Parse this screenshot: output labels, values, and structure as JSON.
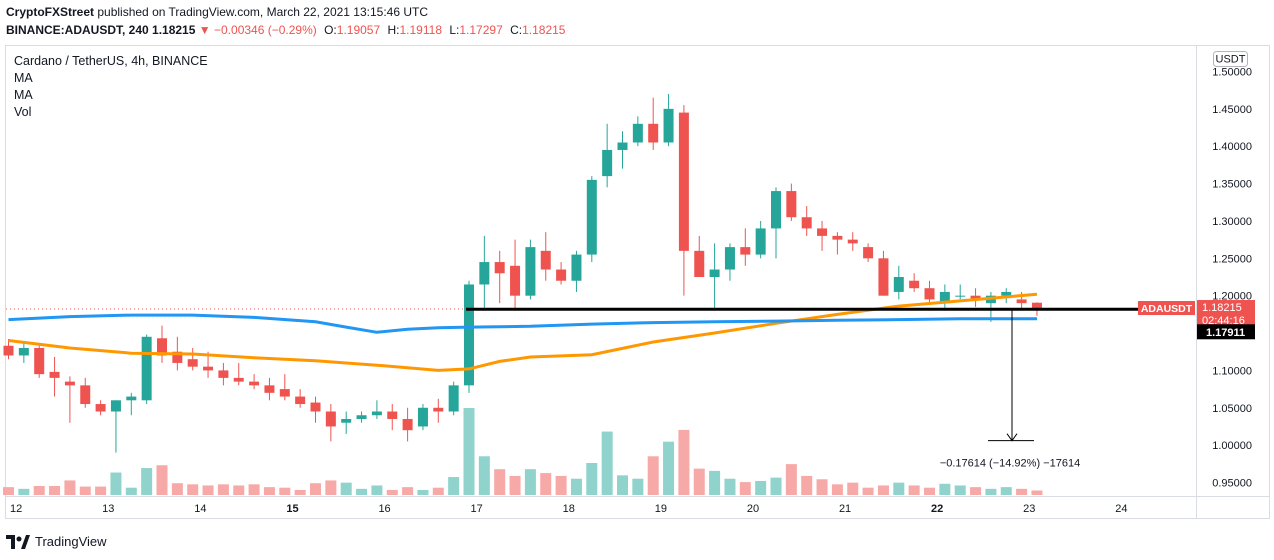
{
  "header": {
    "publisher": "CryptoFXStreet",
    "published_text": "published on TradingView.com, March 22, 2021 13:15:46 UTC",
    "symbol_line": "BINANCE:ADAUSDT, 240",
    "last": "1.18215",
    "change": "−0.00346 (−0.29%)",
    "o_label": "O:",
    "o": "1.19057",
    "h_label": "H:",
    "h": "1.19118",
    "l_label": "L:",
    "l": "1.17297",
    "c_label": "C:",
    "c": "1.18215"
  },
  "legend": {
    "title": "Cardano / TetherUS, 4h, BINANCE",
    "items": [
      "MA",
      "MA",
      "Vol"
    ]
  },
  "currency_badge": "USDT",
  "price_label": {
    "symbol": "ADAUSDT",
    "price": "1.18215",
    "countdown": "02:44:16"
  },
  "level_label": "1.17911",
  "measure_text": "−0.17614 (−14.92%) −17614",
  "brand": "TradingView",
  "colors": {
    "up": "#26a69a",
    "down": "#ef5350",
    "ma_fast": "#2196f3",
    "ma_slow": "#ff9800",
    "vol_up": "#8fd3cc",
    "vol_down": "#f6a9a6"
  },
  "chart_data": {
    "type": "candlestick",
    "title": "Cardano / TetherUS, 4h, BINANCE",
    "ylim": [
      0.93,
      1.52
    ],
    "y_ticks": [
      "1.50000",
      "1.45000",
      "1.40000",
      "1.35000",
      "1.30000",
      "1.25000",
      "1.20000",
      "1.15000",
      "1.10000",
      "1.05000",
      "1.00000",
      "0.95000"
    ],
    "y_tick_values": [
      1.5,
      1.45,
      1.4,
      1.35,
      1.3,
      1.25,
      1.2,
      1.15,
      1.1,
      1.05,
      1.0,
      0.95
    ],
    "x_ticks": [
      {
        "label": "12",
        "slot": 0.5,
        "bold": false
      },
      {
        "label": "13",
        "slot": 6.5,
        "bold": false
      },
      {
        "label": "14",
        "slot": 12.5,
        "bold": false
      },
      {
        "label": "15",
        "slot": 18.5,
        "bold": true
      },
      {
        "label": "16",
        "slot": 24.5,
        "bold": false
      },
      {
        "label": "17",
        "slot": 30.5,
        "bold": false
      },
      {
        "label": "18",
        "slot": 36.5,
        "bold": false
      },
      {
        "label": "19",
        "slot": 42.5,
        "bold": false
      },
      {
        "label": "20",
        "slot": 48.5,
        "bold": false
      },
      {
        "label": "21",
        "slot": 54.5,
        "bold": false
      },
      {
        "label": "22",
        "slot": 60.5,
        "bold": true
      },
      {
        "label": "23",
        "slot": 66.5,
        "bold": false
      },
      {
        "label": "24",
        "slot": 72.5,
        "bold": false
      }
    ],
    "candles": [
      [
        1.133,
        1.142,
        1.115,
        1.12
      ],
      [
        1.12,
        1.137,
        1.11,
        1.13
      ],
      [
        1.13,
        1.135,
        1.09,
        1.095
      ],
      [
        1.098,
        1.118,
        1.065,
        1.09
      ],
      [
        1.085,
        1.092,
        1.03,
        1.08
      ],
      [
        1.08,
        1.09,
        1.05,
        1.055
      ],
      [
        1.055,
        1.06,
        1.04,
        1.045
      ],
      [
        1.045,
        1.06,
        0.99,
        1.06
      ],
      [
        1.06,
        1.07,
        1.04,
        1.065
      ],
      [
        1.06,
        1.148,
        1.055,
        1.145
      ],
      [
        1.143,
        1.16,
        1.11,
        1.12
      ],
      [
        1.125,
        1.145,
        1.1,
        1.11
      ],
      [
        1.115,
        1.13,
        1.1,
        1.105
      ],
      [
        1.105,
        1.125,
        1.09,
        1.1
      ],
      [
        1.1,
        1.11,
        1.08,
        1.09
      ],
      [
        1.09,
        1.11,
        1.08,
        1.085
      ],
      [
        1.085,
        1.095,
        1.075,
        1.08
      ],
      [
        1.08,
        1.09,
        1.06,
        1.07
      ],
      [
        1.075,
        1.095,
        1.06,
        1.065
      ],
      [
        1.065,
        1.075,
        1.05,
        1.055
      ],
      [
        1.057,
        1.065,
        1.03,
        1.045
      ],
      [
        1.045,
        1.055,
        1.005,
        1.025
      ],
      [
        1.03,
        1.045,
        1.015,
        1.035
      ],
      [
        1.035,
        1.045,
        1.03,
        1.04
      ],
      [
        1.04,
        1.06,
        1.035,
        1.045
      ],
      [
        1.045,
        1.055,
        1.02,
        1.035
      ],
      [
        1.035,
        1.05,
        1.005,
        1.02
      ],
      [
        1.025,
        1.055,
        1.02,
        1.05
      ],
      [
        1.05,
        1.062,
        1.03,
        1.045
      ],
      [
        1.045,
        1.085,
        1.04,
        1.08
      ],
      [
        1.08,
        1.22,
        1.07,
        1.215
      ],
      [
        1.215,
        1.28,
        1.18,
        1.245
      ],
      [
        1.245,
        1.26,
        1.19,
        1.23
      ],
      [
        1.24,
        1.275,
        1.18,
        1.2
      ],
      [
        1.2,
        1.275,
        1.195,
        1.265
      ],
      [
        1.26,
        1.285,
        1.22,
        1.235
      ],
      [
        1.235,
        1.245,
        1.215,
        1.22
      ],
      [
        1.22,
        1.26,
        1.205,
        1.255
      ],
      [
        1.255,
        1.36,
        1.245,
        1.355
      ],
      [
        1.36,
        1.43,
        1.345,
        1.395
      ],
      [
        1.395,
        1.42,
        1.37,
        1.405
      ],
      [
        1.405,
        1.44,
        1.4,
        1.43
      ],
      [
        1.43,
        1.465,
        1.395,
        1.405
      ],
      [
        1.405,
        1.47,
        1.4,
        1.45
      ],
      [
        1.445,
        1.455,
        1.2,
        1.26
      ],
      [
        1.26,
        1.28,
        1.225,
        1.225
      ],
      [
        1.225,
        1.27,
        1.18,
        1.235
      ],
      [
        1.235,
        1.27,
        1.22,
        1.265
      ],
      [
        1.265,
        1.29,
        1.24,
        1.255
      ],
      [
        1.255,
        1.3,
        1.25,
        1.29
      ],
      [
        1.29,
        1.345,
        1.25,
        1.34
      ],
      [
        1.34,
        1.35,
        1.3,
        1.305
      ],
      [
        1.305,
        1.32,
        1.28,
        1.29
      ],
      [
        1.29,
        1.3,
        1.26,
        1.28
      ],
      [
        1.28,
        1.285,
        1.255,
        1.275
      ],
      [
        1.275,
        1.285,
        1.26,
        1.27
      ],
      [
        1.265,
        1.27,
        1.245,
        1.25
      ],
      [
        1.25,
        1.26,
        1.2,
        1.2
      ],
      [
        1.205,
        1.24,
        1.195,
        1.225
      ],
      [
        1.22,
        1.23,
        1.205,
        1.21
      ],
      [
        1.21,
        1.22,
        1.19,
        1.195
      ],
      [
        1.19,
        1.215,
        1.18,
        1.205
      ],
      [
        1.2,
        1.215,
        1.195,
        1.2
      ],
      [
        1.2,
        1.21,
        1.185,
        1.195
      ],
      [
        1.19,
        1.205,
        1.165,
        1.2
      ],
      [
        1.2,
        1.21,
        1.19,
        1.205
      ],
      [
        1.195,
        1.205,
        1.18,
        1.19
      ],
      [
        1.1906,
        1.1912,
        1.173,
        1.1822
      ]
    ],
    "volumes": [
      14,
      11,
      16,
      16,
      26,
      15,
      15,
      40,
      13,
      48,
      53,
      21,
      19,
      17,
      19,
      17,
      19,
      14,
      13,
      9,
      21,
      26,
      22,
      11,
      17,
      9,
      14,
      9,
      13,
      32,
      155,
      69,
      46,
      34,
      46,
      39,
      34,
      29,
      57,
      113,
      35,
      29,
      69,
      95,
      116,
      47,
      43,
      29,
      23,
      25,
      31,
      55,
      34,
      28,
      19,
      22,
      13,
      17,
      22,
      17,
      13,
      20,
      17,
      14,
      11,
      14,
      11,
      8
    ],
    "ma_fast": [
      [
        0,
        1.168
      ],
      [
        4,
        1.172
      ],
      [
        8,
        1.174
      ],
      [
        12,
        1.174
      ],
      [
        16,
        1.171
      ],
      [
        20,
        1.165
      ],
      [
        22,
        1.158
      ],
      [
        24,
        1.151
      ],
      [
        26,
        1.155
      ],
      [
        28,
        1.157
      ],
      [
        30,
        1.158
      ],
      [
        34,
        1.159
      ],
      [
        38,
        1.162
      ],
      [
        42,
        1.164
      ],
      [
        46,
        1.165
      ],
      [
        50,
        1.166
      ],
      [
        54,
        1.167
      ],
      [
        58,
        1.168
      ],
      [
        62,
        1.169
      ],
      [
        67,
        1.169
      ]
    ],
    "ma_slow": [
      [
        0,
        1.14
      ],
      [
        4,
        1.13
      ],
      [
        8,
        1.123
      ],
      [
        12,
        1.122
      ],
      [
        16,
        1.117
      ],
      [
        20,
        1.113
      ],
      [
        24,
        1.107
      ],
      [
        28,
        1.1
      ],
      [
        30,
        1.102
      ],
      [
        32,
        1.112
      ],
      [
        34,
        1.118
      ],
      [
        38,
        1.121
      ],
      [
        42,
        1.138
      ],
      [
        46,
        1.15
      ],
      [
        50,
        1.163
      ],
      [
        54,
        1.175
      ],
      [
        58,
        1.186
      ],
      [
        62,
        1.193
      ],
      [
        67,
        1.202
      ]
    ],
    "support_level": 1.17911,
    "current_price": 1.18215,
    "measure": {
      "from": 1.182,
      "to": 1.006,
      "change": -0.17614,
      "percent": -14.92
    }
  }
}
